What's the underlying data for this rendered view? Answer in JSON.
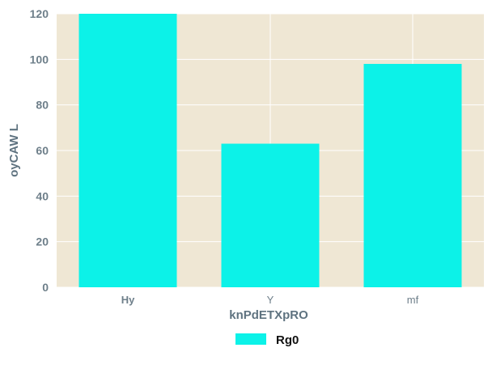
{
  "chart_data": {
    "type": "bar",
    "categories": [
      "Hy",
      "Y",
      "mf"
    ],
    "series": [
      {
        "name": "Rg0",
        "values": [
          120,
          63,
          98
        ]
      }
    ],
    "xlabel": "knPdETXpRO",
    "ylabel": "oyCAW L",
    "ylim": [
      0,
      120
    ],
    "yticks": [
      0,
      20,
      40,
      60,
      80,
      100,
      120
    ],
    "grid": true,
    "legend_position": "bottom-center",
    "colors": {
      "bar": "#0cf2e8",
      "plot_background": "#efe7d4",
      "grid": "#ffffff",
      "tick_text": "#6e7f8a",
      "axis_title": "#5f7380"
    }
  }
}
